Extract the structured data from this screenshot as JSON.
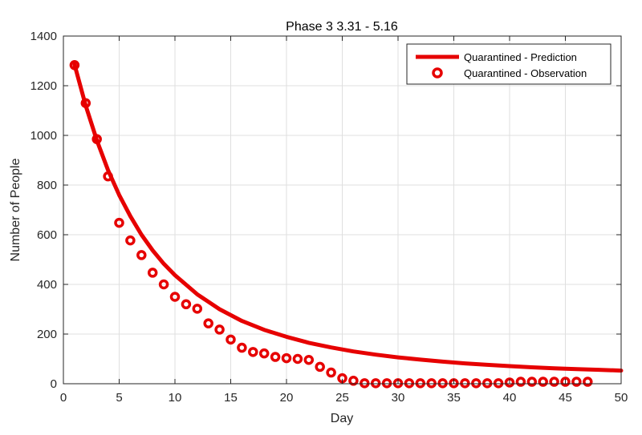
{
  "chart_data": {
    "type": "line",
    "title": "Phase 3 3.31 - 5.16",
    "xlabel": "Day",
    "ylabel": "Number of People",
    "xlim": [
      0,
      50
    ],
    "ylim": [
      0,
      1400
    ],
    "xticks": [
      0,
      5,
      10,
      15,
      20,
      25,
      30,
      35,
      40,
      45,
      50
    ],
    "yticks": [
      0,
      200,
      400,
      600,
      800,
      1000,
      1200,
      1400
    ],
    "grid": true,
    "legend_position": "top-right",
    "series": [
      {
        "name": "Quarantined - Prediction",
        "style": "line",
        "color": "#e60000",
        "x": [
          1,
          2,
          3,
          4,
          5,
          6,
          7,
          8,
          9,
          10,
          12,
          14,
          16,
          18,
          20,
          22,
          24,
          26,
          28,
          30,
          32,
          34,
          36,
          38,
          40,
          42,
          44,
          46,
          48,
          50
        ],
        "y": [
          1285,
          1120,
          980,
          860,
          760,
          675,
          600,
          537,
          483,
          437,
          360,
          300,
          253,
          217,
          189,
          165,
          146,
          130,
          117,
          106,
          97,
          89,
          82,
          76,
          71,
          66,
          62,
          59,
          56,
          53
        ]
      },
      {
        "name": "Quarantined - Observation",
        "style": "marker",
        "color": "#e60000",
        "x": [
          1,
          2,
          3,
          4,
          5,
          6,
          7,
          8,
          9,
          10,
          11,
          12,
          13,
          14,
          15,
          16,
          17,
          18,
          19,
          20,
          21,
          22,
          23,
          24,
          25,
          26,
          27,
          28,
          29,
          30,
          31,
          32,
          33,
          34,
          35,
          36,
          37,
          38,
          39,
          40,
          41,
          42,
          43,
          44,
          45,
          46,
          47
        ],
        "y": [
          1283,
          1130,
          985,
          835,
          648,
          577,
          518,
          447,
          400,
          350,
          320,
          302,
          243,
          218,
          178,
          145,
          128,
          122,
          108,
          103,
          100,
          96,
          68,
          45,
          22,
          12,
          2,
          2,
          2,
          2,
          2,
          2,
          2,
          2,
          2,
          2,
          2,
          2,
          2,
          5,
          8,
          8,
          8,
          8,
          8,
          8,
          8
        ]
      }
    ]
  }
}
